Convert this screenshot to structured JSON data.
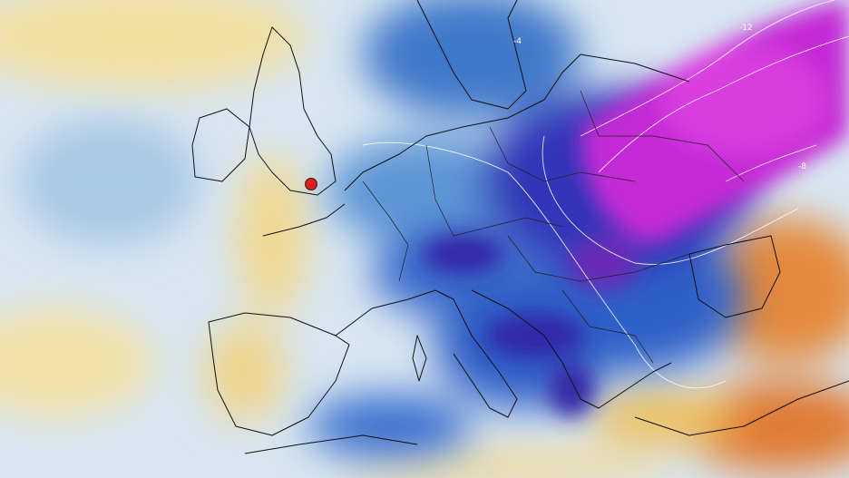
{
  "map": {
    "contour_labels": [
      "-12",
      "-8",
      "-4"
    ]
  }
}
